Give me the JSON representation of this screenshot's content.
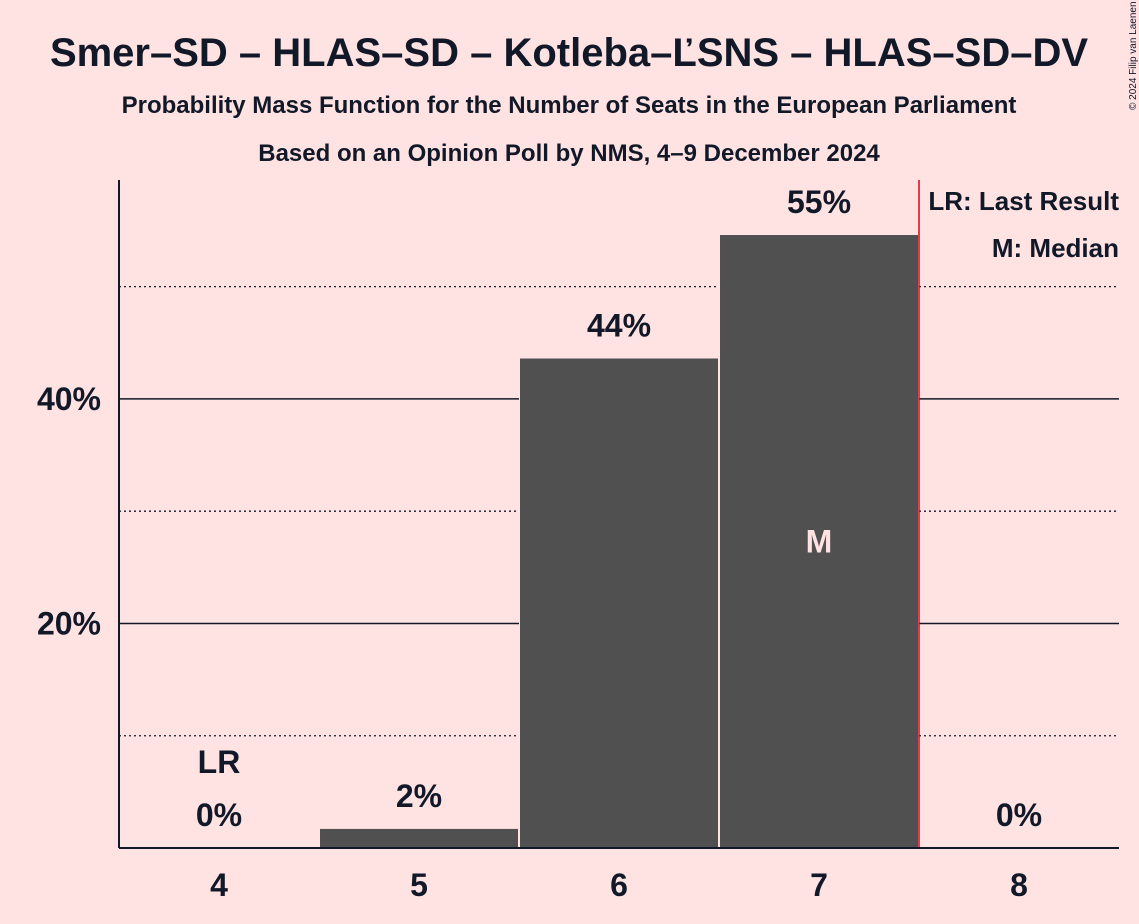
{
  "chart_data": {
    "type": "bar",
    "title": "Smer–SD – HLAS–SD – Kotleba–ĽSNS – HLAS–SD–DV",
    "subtitle": "Probability Mass Function for the Number of Seats in the European Parliament",
    "subtitle2": "Based on an Opinion Poll by NMS, 4–9 December 2024",
    "copyright": "© 2024 Filip van Laenen",
    "categories": [
      "4",
      "5",
      "6",
      "7",
      "8"
    ],
    "values": [
      0,
      1.7,
      43.6,
      54.6,
      0
    ],
    "value_labels": [
      "0%",
      "2%",
      "44%",
      "55%",
      "0%"
    ],
    "ylim": [
      0,
      59.5
    ],
    "yticks_major": [
      20,
      40
    ],
    "ytick_labels": [
      "20%",
      "40%"
    ],
    "yticks_minor": [
      10,
      30,
      50
    ],
    "last_result": {
      "category": "4",
      "label": "LR"
    },
    "median": {
      "category": "7",
      "label": "M"
    },
    "majority_line_after": "7",
    "legend": {
      "position": "top-right",
      "items": [
        "LR: Last Result",
        "M: Median"
      ]
    },
    "colors": {
      "background": "#ffe2e2",
      "bar": "#505050",
      "median_label": "#ffe2e2",
      "majority_line": "#e0001a",
      "text": "#111827"
    }
  }
}
